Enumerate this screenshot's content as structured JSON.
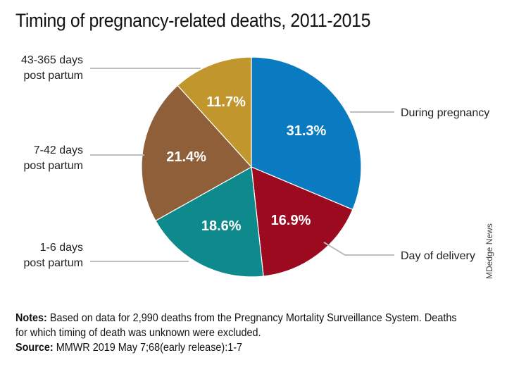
{
  "title": "Timing of pregnancy-related deaths, 2011-2015",
  "chart_data": {
    "type": "pie",
    "start_angle_deg": 0,
    "direction": "clockwise",
    "slices": [
      {
        "label": "During pregnancy",
        "value": 31.3,
        "value_label": "31.3%",
        "color": "#0a7bc1"
      },
      {
        "label": "Day of delivery",
        "value": 16.9,
        "value_label": "16.9%",
        "color": "#9b0a1f"
      },
      {
        "label": "1-6 days post partum",
        "label_lines": [
          "1-6 days",
          "post partum"
        ],
        "value": 18.6,
        "value_label": "18.6%",
        "color": "#0f8a8c"
      },
      {
        "label": "7-42 days post partum",
        "label_lines": [
          "7-42 days",
          "post partum"
        ],
        "value": 21.4,
        "value_label": "21.4%",
        "color": "#8f5f39"
      },
      {
        "label": "43-365 days post partum",
        "label_lines": [
          "43-365 days",
          "post partum"
        ],
        "value": 11.7,
        "value_label": "11.7%",
        "color": "#c1962c"
      }
    ]
  },
  "notes": {
    "label": "Notes:",
    "text": "Based on data for 2,990 deaths from the Pregnancy Mortality Surveillance System. Deaths for which timing of death was unknown were excluded."
  },
  "source": {
    "label": "Source:",
    "text": "MMWR 2019 May 7;68(early release):1-7"
  },
  "credit": "MDedge News"
}
